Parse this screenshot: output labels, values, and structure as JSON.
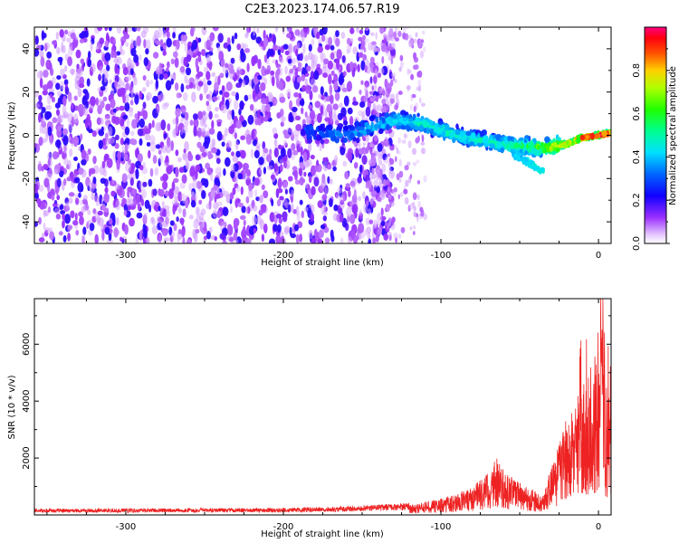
{
  "title": "C2E3.2023.174.06.57.R19",
  "chart_data": [
    {
      "type": "heatmap",
      "xlabel": "Height of straight line (km)",
      "ylabel": "Frequency (Hz)",
      "xlim": [
        -358,
        8
      ],
      "ylim": [
        -50,
        50
      ],
      "x_ticks": [
        -300,
        -200,
        -100,
        0
      ],
      "x_tick_labels": [
        "-300",
        "-200",
        "-100",
        "0"
      ],
      "y_ticks": [
        -40,
        -20,
        0,
        20,
        40
      ],
      "y_tick_labels": [
        "-40",
        "-20",
        "0",
        "20",
        "40"
      ],
      "colorbar": {
        "label": "Normalized spectral amplitude",
        "range": [
          0,
          1
        ],
        "ticks": [
          0.0,
          0.2,
          0.4,
          0.6,
          0.8
        ],
        "tick_labels": [
          "0.0",
          "0.2",
          "0.4",
          "0.6",
          "0.8"
        ],
        "colormap": "gist_rainbow_r"
      },
      "features": {
        "noise_region_x": [
          -358,
          -130
        ],
        "noise_amplitude": [
          0.05,
          0.35
        ],
        "signal_track": [
          {
            "x": -185,
            "f": 2,
            "amp": 0.3
          },
          {
            "x": -160,
            "f": 0,
            "amp": 0.35
          },
          {
            "x": -130,
            "f": 7,
            "amp": 0.45
          },
          {
            "x": -110,
            "f": 5,
            "amp": 0.5
          },
          {
            "x": -90,
            "f": 0,
            "amp": 0.5
          },
          {
            "x": -70,
            "f": -3,
            "amp": 0.5
          },
          {
            "x": -50,
            "f": -5,
            "amp": 0.55
          },
          {
            "x": -35,
            "f": -6,
            "amp": 0.7
          },
          {
            "x": -20,
            "f": -4,
            "amp": 0.85
          },
          {
            "x": -10,
            "f": -1,
            "amp": 0.9
          },
          {
            "x": 0,
            "f": 0,
            "amp": 0.95
          },
          {
            "x": 8,
            "f": 1,
            "amp": 0.95
          }
        ],
        "secondary_track": [
          {
            "x": -55,
            "f": -8,
            "amp": 0.4
          },
          {
            "x": -35,
            "f": -17,
            "amp": 0.45
          }
        ]
      }
    },
    {
      "type": "line",
      "xlabel": "Height of straight line (km)",
      "ylabel": "SNR (10 * v/v)",
      "xlim": [
        -358,
        8
      ],
      "ylim": [
        0,
        7600
      ],
      "x_ticks": [
        -300,
        -200,
        -100,
        0
      ],
      "x_tick_labels": [
        "-300",
        "-200",
        "-100",
        "0"
      ],
      "y_ticks": [
        2000,
        4000,
        6000
      ],
      "y_tick_labels": [
        "2000",
        "4000",
        "6000"
      ],
      "color": "#ee2222",
      "envelope": {
        "x": [
          -358,
          -250,
          -200,
          -150,
          -120,
          -100,
          -90,
          -80,
          -70,
          -65,
          -60,
          -55,
          -50,
          -45,
          -40,
          -35,
          -30,
          -25,
          -20,
          -15,
          -10,
          -5,
          0,
          3,
          5,
          8
        ],
        "y": [
          150,
          160,
          170,
          220,
          300,
          500,
          650,
          900,
          1300,
          1800,
          1400,
          1200,
          1000,
          900,
          700,
          600,
          1500,
          2200,
          3000,
          3500,
          4000,
          4100,
          4800,
          6500,
          3500,
          4500
        ]
      }
    }
  ]
}
